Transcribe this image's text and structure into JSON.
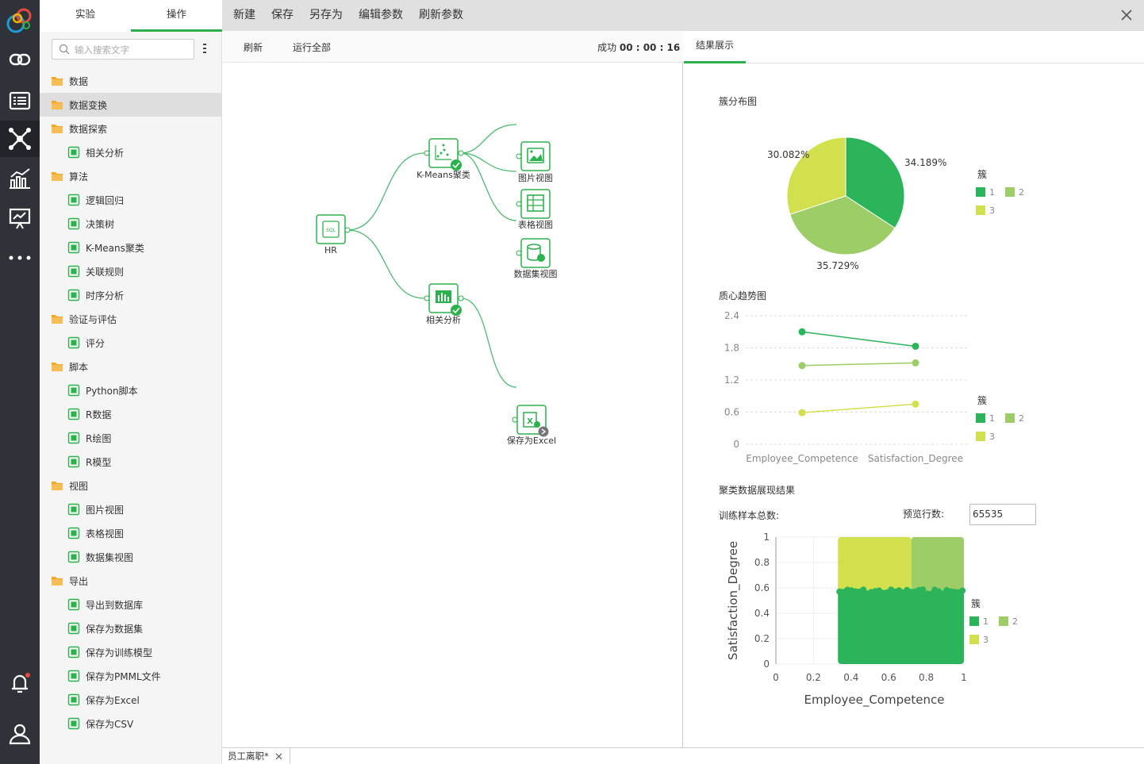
{
  "sidebar_tabs": [
    {
      "label": "实验",
      "active": false
    },
    {
      "label": "操作",
      "active": true
    }
  ],
  "search": {
    "placeholder": "输入搜索文字"
  },
  "tree": [
    {
      "type": "folder",
      "label": "数据",
      "icon": "folder-icon"
    },
    {
      "type": "folder",
      "label": "数据变换",
      "icon": "folder-icon",
      "selected": true
    },
    {
      "type": "folder",
      "label": "数据探索",
      "icon": "folder-icon"
    },
    {
      "type": "leaf",
      "label": "相关分析",
      "icon": "correlation-icon"
    },
    {
      "type": "folder",
      "label": "算法",
      "icon": "folder-icon"
    },
    {
      "type": "leaf",
      "label": "逻辑回归",
      "icon": "logistic-regression-icon"
    },
    {
      "type": "leaf",
      "label": "决策树",
      "icon": "decision-tree-icon"
    },
    {
      "type": "leaf",
      "label": "K-Means聚类",
      "icon": "kmeans-icon"
    },
    {
      "type": "leaf",
      "label": "关联规则",
      "icon": "association-rules-icon"
    },
    {
      "type": "leaf",
      "label": "时序分析",
      "icon": "time-series-icon"
    },
    {
      "type": "folder",
      "label": "验证与评估",
      "icon": "folder-icon"
    },
    {
      "type": "leaf",
      "label": "评分",
      "icon": "score-icon"
    },
    {
      "type": "folder",
      "label": "脚本",
      "icon": "folder-icon"
    },
    {
      "type": "leaf",
      "label": "Python脚本",
      "icon": "python-script-icon"
    },
    {
      "type": "leaf",
      "label": "R数据",
      "icon": "r-data-icon"
    },
    {
      "type": "leaf",
      "label": "R绘图",
      "icon": "r-plot-icon"
    },
    {
      "type": "leaf",
      "label": "R模型",
      "icon": "r-model-icon"
    },
    {
      "type": "folder",
      "label": "视图",
      "icon": "folder-icon"
    },
    {
      "type": "leaf",
      "label": "图片视图",
      "icon": "image-view-icon"
    },
    {
      "type": "leaf",
      "label": "表格视图",
      "icon": "table-view-icon"
    },
    {
      "type": "leaf",
      "label": "数据集视图",
      "icon": "dataset-view-icon"
    },
    {
      "type": "folder",
      "label": "导出",
      "icon": "folder-icon"
    },
    {
      "type": "leaf",
      "label": "导出到数据库",
      "icon": "export-db-icon"
    },
    {
      "type": "leaf",
      "label": "保存为数据集",
      "icon": "save-dataset-icon"
    },
    {
      "type": "leaf",
      "label": "保存为训练模型",
      "icon": "save-model-icon"
    },
    {
      "type": "leaf",
      "label": "保存为PMML文件",
      "icon": "save-pmml-icon"
    },
    {
      "type": "leaf",
      "label": "保存为Excel",
      "icon": "save-excel-icon"
    },
    {
      "type": "leaf",
      "label": "保存为CSV",
      "icon": "save-csv-icon"
    }
  ],
  "top_menu": [
    "新建",
    "保存",
    "另存为",
    "编辑参数",
    "刷新参数"
  ],
  "canvas_toolbar": {
    "refresh": "刷新",
    "run_all": "运行全部",
    "status_prefix": "成功",
    "status_time": "00 : 00 : 16"
  },
  "flow_nodes": [
    {
      "id": "hr",
      "label": "HR",
      "icon": "sql-icon"
    },
    {
      "id": "kmeans",
      "label": "K-Means聚类",
      "icon": "kmeans-icon",
      "status": "success"
    },
    {
      "id": "corr",
      "label": "相关分析",
      "icon": "correlation-icon",
      "status": "success"
    },
    {
      "id": "img",
      "label": "图片视图",
      "icon": "image-view-icon"
    },
    {
      "id": "tbl",
      "label": "表格视图",
      "icon": "table-view-icon"
    },
    {
      "id": "ds",
      "label": "数据集视图",
      "icon": "dataset-view-icon"
    },
    {
      "id": "excel",
      "label": "保存为Excel",
      "icon": "save-excel-icon",
      "status": "pending"
    }
  ],
  "result_tab": "结果展示",
  "colors": {
    "c1": "#2bb45a",
    "c2": "#9ccd66",
    "c3": "#d2e04d",
    "accent": "#2bb24c"
  },
  "chart_data": [
    {
      "type": "pie",
      "title": "簇分布图",
      "legend_title": "簇",
      "categories": [
        "1",
        "2",
        "3"
      ],
      "values": [
        34.189,
        35.729,
        30.082
      ],
      "value_labels": [
        "34.189%",
        "35.729%",
        "30.082%"
      ]
    },
    {
      "type": "line",
      "title": "质心趋势图",
      "legend_title": "簇",
      "x": [
        "Employee_Competence",
        "Satisfaction_Degree"
      ],
      "ylim": [
        0,
        2.4
      ],
      "yticks": [
        "2.4",
        "1.8",
        "1.2",
        "0.6",
        "0"
      ],
      "series": [
        {
          "name": "1",
          "values": [
            2.1,
            1.83
          ]
        },
        {
          "name": "2",
          "values": [
            1.47,
            1.52
          ]
        },
        {
          "name": "3",
          "values": [
            0.59,
            0.75
          ]
        }
      ]
    },
    {
      "type": "scatter",
      "title": "聚类数据展现结果",
      "legend_title": "簇",
      "xlabel": "Employee_Competence",
      "ylabel": "Satisfaction_Degree",
      "xlim": [
        0,
        1
      ],
      "ylim": [
        0,
        1
      ],
      "xticks": [
        "0",
        "0.2",
        "0.4",
        "0.6",
        "0.8",
        "1"
      ],
      "yticks": [
        "1",
        "0.8",
        "0.6",
        "0.4",
        "0.2",
        "0"
      ],
      "clusters": [
        {
          "name": "1",
          "x": [
            0.33,
            1.0
          ],
          "y": [
            0.0,
            0.57
          ]
        },
        {
          "name": "2",
          "x": [
            0.72,
            1.0
          ],
          "y": [
            0.57,
            1.0
          ]
        },
        {
          "name": "3",
          "x": [
            0.33,
            0.72
          ],
          "y": [
            0.57,
            1.0
          ]
        }
      ],
      "sample_label": "训练样本总数:",
      "preview_label": "预览行数:",
      "preview_rows": "65535"
    }
  ],
  "bottom_tab": {
    "label": "员工离职*"
  }
}
